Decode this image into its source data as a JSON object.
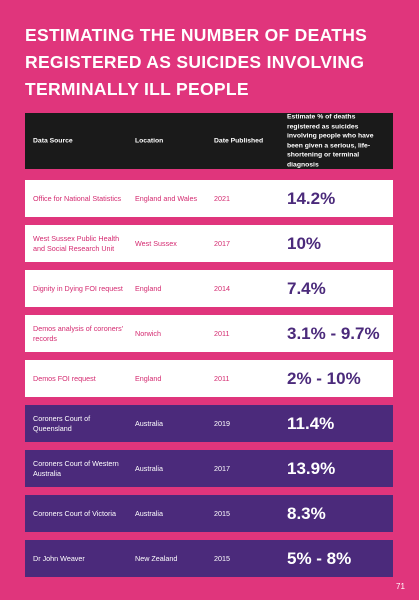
{
  "title": "ESTIMATING THE NUMBER OF DEATHS REGISTERED AS SUICIDES INVOLVING TERMINALLY ILL PEOPLE",
  "table": {
    "header": [
      "Data Source",
      "Location",
      "Date Published",
      "Estimate % of deaths registered as suicides involving people who have been given a serious, life-shortening or terminal diagnosis"
    ],
    "rows": [
      [
        "Office for National Statistics",
        "England and Wales",
        "2021",
        "14.2%"
      ],
      [
        "West Sussex Public Health and Social Research Unit",
        "West Sussex",
        "2017",
        "10%"
      ],
      [
        "Dignity in Dying FOI request",
        "England",
        "2014",
        "7.4%"
      ],
      [
        "Demos analysis of coroners' records",
        "Norwich",
        "2011",
        "3.1% - 9.7%"
      ],
      [
        "Demos FOI request",
        "England",
        "2011",
        "2% - 10%"
      ],
      [
        "Coroners Court of Queensland",
        "Australia",
        "2019",
        "11.4%"
      ],
      [
        "Coroners Court of Western Australia",
        "Australia",
        "2017",
        "13.9%"
      ],
      [
        "Coroners Court of Victoria",
        "Australia",
        "2015",
        "8.3%"
      ],
      [
        "Dr John Weaver",
        "New Zealand",
        "2015",
        "5% - 8%"
      ]
    ]
  },
  "page_number": "71"
}
